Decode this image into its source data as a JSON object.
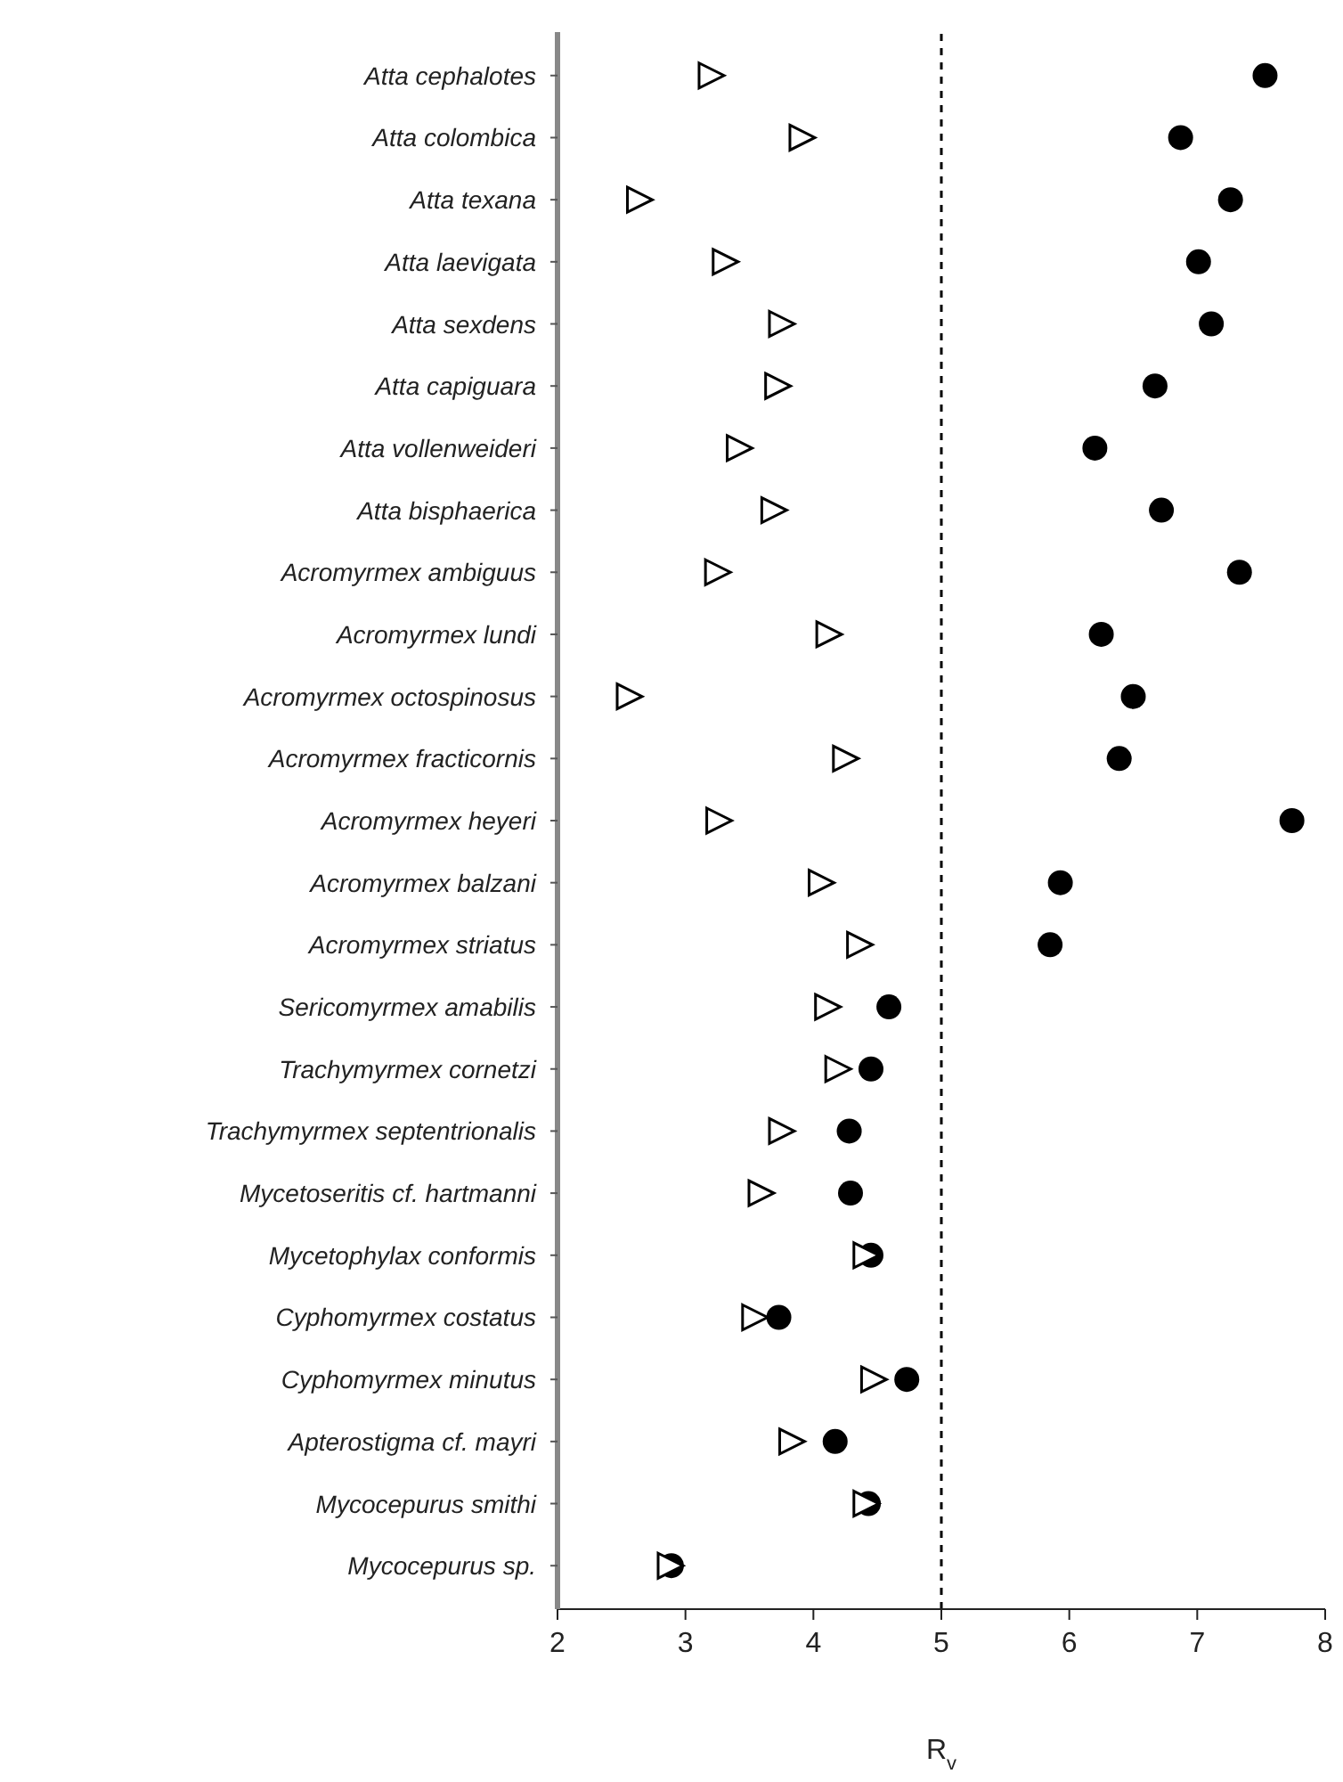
{
  "chart_data": {
    "type": "scatter",
    "xlabel": "R$_{v}$",
    "categories": [
      "Atta cephalotes",
      "Atta colombica",
      "Atta texana",
      "Atta laevigata",
      "Atta sexdens",
      "Atta capiguara",
      "Atta vollenweideri",
      "Atta bisphaerica",
      "Acromyrmex ambiguus",
      "Acromyrmex lundi",
      "Acromyrmex octospinosus",
      "Acromyrmex fracticornis",
      "Acromyrmex heyeri",
      "Acromyrmex balzani",
      "Acromyrmex striatus",
      "Sericomyrmex amabilis",
      "Trachymyrmex cornetzi",
      "Trachymyrmex septentrionalis",
      "Mycetoseritis cf. hartmanni",
      "Mycetophylax conformis",
      "Cyphomyrmex costatus",
      "Cyphomyrmex minutus",
      "Apterostigma cf. mayri",
      "Mycocepurus smithi",
      "Mycocepurus sp."
    ],
    "orientation": "horizontal",
    "series": [
      {
        "color": "#000000",
        "marker": "triangle",
        "values": [
          3.19,
          3.9,
          2.63,
          3.3,
          3.74,
          3.71,
          3.41,
          3.68,
          3.24,
          4.11,
          2.55,
          4.24,
          3.25,
          4.05,
          4.35,
          4.1,
          4.18,
          3.74,
          3.58,
          4.4,
          3.53,
          4.46,
          3.82,
          4.4,
          2.87
        ]
      },
      {
        "color": "#000000",
        "marker": "circle",
        "values": [
          7.53,
          6.87,
          7.26,
          7.01,
          7.11,
          6.67,
          6.2,
          6.72,
          7.33,
          6.25,
          6.5,
          6.39,
          7.74,
          5.93,
          5.85,
          4.59,
          4.45,
          4.28,
          4.29,
          4.45,
          3.73,
          4.73,
          4.17,
          4.43,
          2.89
        ]
      }
    ],
    "xlim": [
      2,
      8
    ],
    "xticks": [
      2,
      3,
      4,
      5,
      6,
      7,
      8
    ],
    "ref_lines": [
      {
        "axis": "x",
        "value": 5,
        "color": "#000000",
        "line_style": "dashed"
      }
    ],
    "grid": false,
    "legend": false
  }
}
